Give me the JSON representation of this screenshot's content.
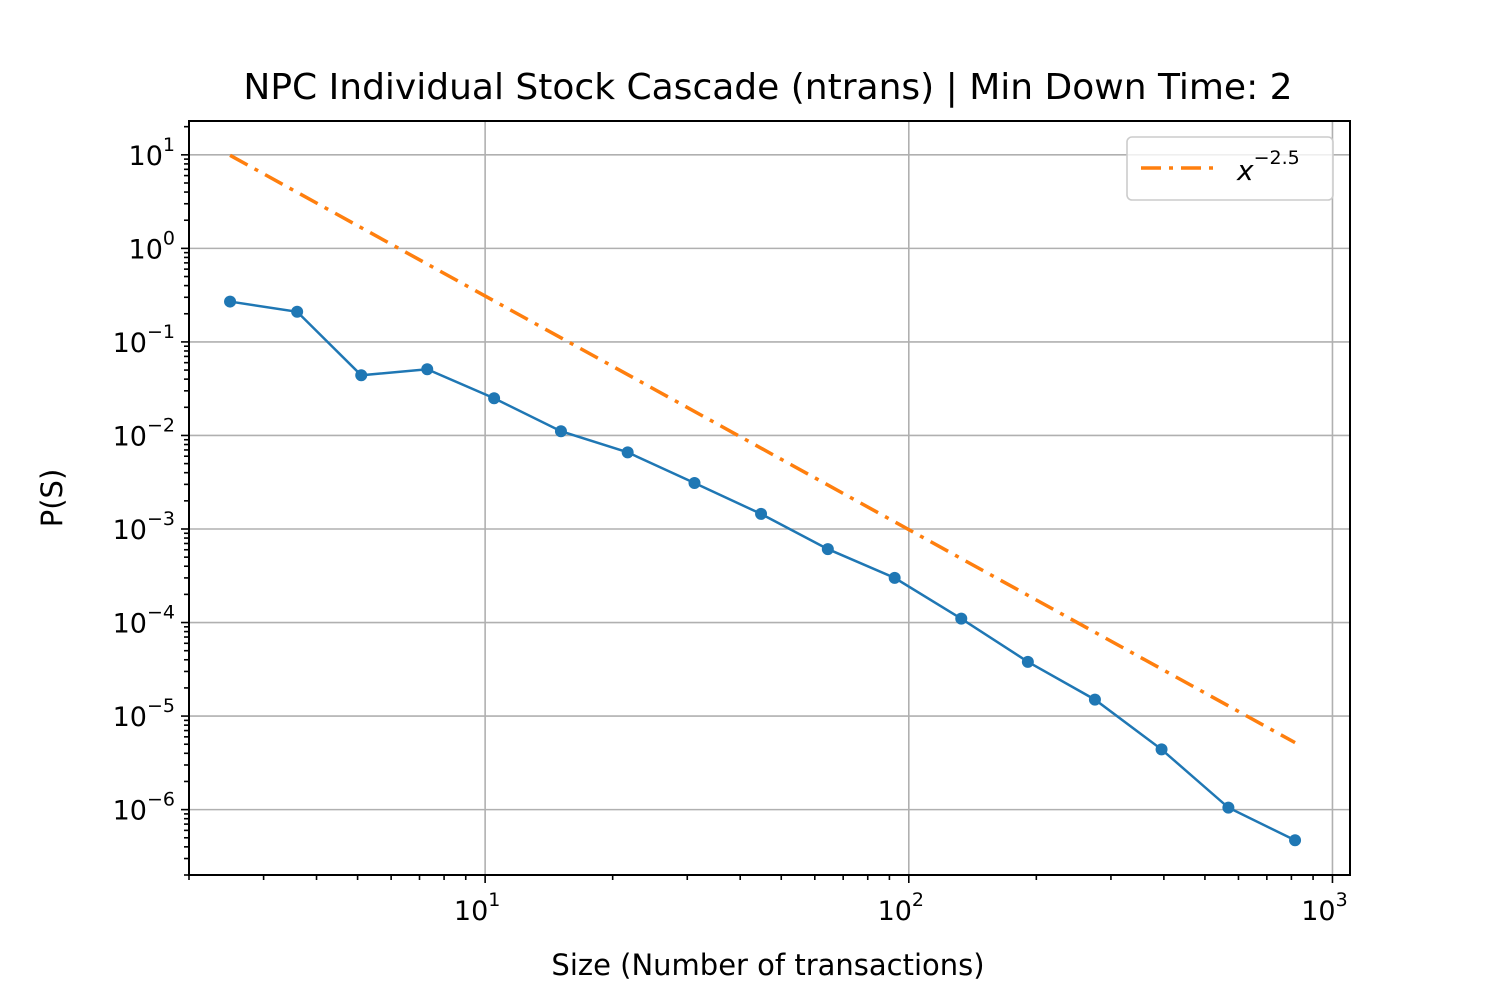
{
  "chart_data": {
    "type": "line",
    "title": "NPC Individual Stock Cascade (ntrans) | Min Down Time: 2",
    "xlabel": "Size (Number of transactions)",
    "ylabel": "P(S)",
    "xscale": "log",
    "yscale": "log",
    "xlim": [
      2.0,
      1100
    ],
    "ylim": [
      2e-07,
      23
    ],
    "grid": true,
    "legend": "top-right",
    "x_ticks": [
      {
        "base": "10",
        "exp": "1"
      },
      {
        "base": "10",
        "exp": "2"
      },
      {
        "base": "10",
        "exp": "3"
      }
    ],
    "y_ticks": [
      {
        "base": "10",
        "exp": "1"
      },
      {
        "base": "10",
        "exp": "0"
      },
      {
        "base": "10",
        "exp": "−1"
      },
      {
        "base": "10",
        "exp": "−2"
      },
      {
        "base": "10",
        "exp": "−3"
      },
      {
        "base": "10",
        "exp": "−4"
      },
      {
        "base": "10",
        "exp": "−5"
      },
      {
        "base": "10",
        "exp": "−6"
      }
    ],
    "series": [
      {
        "color": "#1f77b4",
        "style": "solid-with-dots",
        "x": [
          2.5,
          3.6,
          5.1,
          7.3,
          10.5,
          15.1,
          21.7,
          31.2,
          44.8,
          64.4,
          92.6,
          133,
          191,
          275,
          395,
          568,
          816
        ],
        "y": [
          0.27,
          0.21,
          0.044,
          0.051,
          0.025,
          0.0111,
          0.0066,
          0.0031,
          0.00145,
          0.00061,
          0.0003,
          0.00011,
          3.8e-05,
          1.5e-05,
          4.4e-06,
          1.05e-06,
          4.7e-07
        ]
      },
      {
        "name": "x^{-2.5}",
        "legend_base": "x",
        "legend_exp": "−2.5",
        "color": "#ff7f0e",
        "style": "dashdot",
        "x": [
          2.5,
          816
        ],
        "y": [
          9.88,
          5.2e-06
        ]
      }
    ]
  }
}
